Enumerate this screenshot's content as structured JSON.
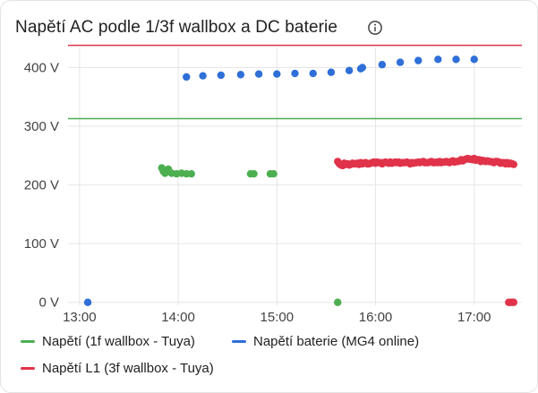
{
  "title": "Napětí AC podle 1/3f wallbox a DC baterie",
  "icons": {
    "info": "info-icon"
  },
  "colors": {
    "green": "#4caf50",
    "blue": "#2e6fd8",
    "red": "#e0334a",
    "grid": "#e6e6e6"
  },
  "chart_data": {
    "type": "scatter",
    "x_ticks": [
      "13:00",
      "14:00",
      "15:00",
      "16:00",
      "17:00"
    ],
    "y_ticks": [
      "0 V",
      "100 V",
      "200 V",
      "300 V",
      "400 V"
    ],
    "xlim": [
      "12:53",
      "17:29"
    ],
    "ylim": [
      -5,
      445
    ],
    "threshold_lines": [
      {
        "value": 438,
        "color": "#e0334a"
      },
      {
        "value": 313,
        "color": "#4caf50"
      }
    ],
    "series": [
      {
        "name": "Napětí (1f wallbox - Tuya)",
        "color": "#4caf50",
        "points": [
          [
            "13:50",
            229
          ],
          [
            "13:51",
            223
          ],
          [
            "13:52",
            220
          ],
          [
            "13:54",
            227
          ],
          [
            "13:56",
            220
          ],
          [
            "13:59",
            219
          ],
          [
            "14:02",
            220
          ],
          [
            "14:05",
            219
          ],
          [
            "14:08",
            219
          ],
          [
            "14:44",
            219
          ],
          [
            "14:46",
            219
          ],
          [
            "14:56",
            219
          ],
          [
            "14:58",
            219
          ],
          [
            "15:37",
            0
          ]
        ]
      },
      {
        "name": "Napětí baterie (MG4 online)",
        "color": "#2e6fd8",
        "points": [
          [
            "13:05",
            0
          ],
          [
            "14:05",
            384
          ],
          [
            "14:15",
            386
          ],
          [
            "14:26",
            387
          ],
          [
            "14:38",
            388
          ],
          [
            "14:49",
            389
          ],
          [
            "15:00",
            389
          ],
          [
            "15:11",
            390
          ],
          [
            "15:22",
            390
          ],
          [
            "15:33",
            392
          ],
          [
            "15:44",
            395
          ],
          [
            "15:51",
            398
          ],
          [
            "15:52",
            400
          ],
          [
            "16:04",
            405
          ],
          [
            "16:15",
            409
          ],
          [
            "16:26",
            412
          ],
          [
            "16:38",
            414
          ],
          [
            "16:49",
            414
          ],
          [
            "17:00",
            414
          ]
        ]
      },
      {
        "name": "Napětí L1 (3f wallbox - Tuya)",
        "color": "#e0334a",
        "start": "15:37",
        "end": "17:24",
        "step_minutes": 1,
        "values": [
          240,
          236,
          234,
          233,
          237,
          235,
          236,
          234,
          235,
          237,
          236,
          236,
          237,
          235,
          238,
          236,
          237,
          238,
          236,
          236,
          237,
          238,
          239,
          237,
          239,
          238,
          238,
          236,
          238,
          239,
          238,
          237,
          239,
          237,
          238,
          239,
          238,
          239,
          237,
          238,
          238,
          238,
          239,
          238,
          236,
          238,
          237,
          238,
          238,
          239,
          238,
          239,
          240,
          238,
          238,
          238,
          239,
          240,
          238,
          238,
          239,
          238,
          240,
          238,
          239,
          239,
          240,
          239,
          238,
          240,
          241,
          239,
          240,
          240,
          241,
          243,
          241,
          243,
          244,
          245,
          244,
          244,
          243,
          245,
          242,
          243,
          243,
          240,
          242,
          241,
          240,
          241,
          240,
          240,
          239,
          238,
          240,
          240,
          239,
          237,
          238,
          238,
          236,
          238,
          236,
          237,
          236,
          235
        ],
        "extra_points": [
          [
            "17:21",
            0
          ],
          [
            "17:22",
            0
          ],
          [
            "17:23",
            0
          ],
          [
            "17:24",
            0
          ]
        ]
      }
    ]
  },
  "legend": {
    "items": [
      {
        "label": "Napětí (1f wallbox - Tuya)",
        "color": "#4caf50"
      },
      {
        "label": "Napětí baterie (MG4 online)",
        "color": "#2e6fd8"
      },
      {
        "label": "Napětí L1 (3f wallbox - Tuya)",
        "color": "#e0334a"
      }
    ]
  }
}
